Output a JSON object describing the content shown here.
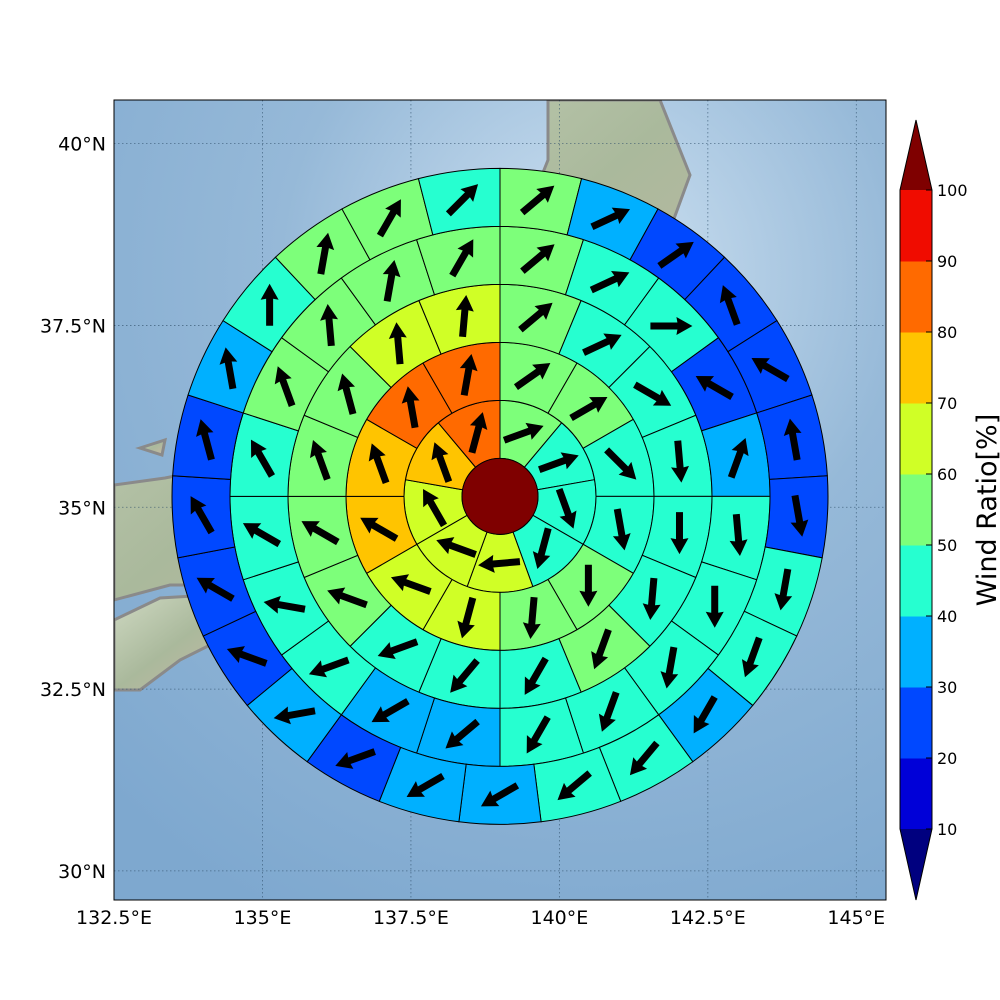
{
  "chart_data": {
    "type": "heatmap",
    "title": "",
    "x_axis": {
      "ticks": [
        132.5,
        135,
        137.5,
        140,
        142.5,
        145
      ],
      "tick_labels": [
        "132.5°E",
        "135°E",
        "137.5°E",
        "140°E",
        "142.5°E",
        "145°E"
      ],
      "range": [
        132.5,
        145.5
      ]
    },
    "y_axis": {
      "ticks": [
        30,
        32.5,
        35,
        37.5,
        40
      ],
      "tick_labels": [
        "30°N",
        "32.5°N",
        "35°N",
        "37.5°N",
        "40°N"
      ],
      "range": [
        29.6,
        40.6
      ]
    },
    "grid": true,
    "background": "shaded-relief map of central Japan with grey coastlines",
    "center": {
      "lon": 139.0,
      "lat": 35.15
    },
    "center_value": 100,
    "rings": [
      {
        "ring": 1,
        "values": [
          50,
          40,
          40,
          40,
          60,
          60,
          60,
          70,
          80
        ]
      },
      {
        "ring": 2,
        "values": [
          50,
          50,
          40,
          40,
          50,
          50,
          60,
          60,
          70,
          70,
          80,
          80
        ]
      },
      {
        "ring": 3,
        "values": [
          50,
          40,
          40,
          40,
          40,
          40,
          50,
          40,
          40,
          40,
          50,
          50,
          50,
          50,
          60,
          60
        ]
      },
      {
        "ring": 4,
        "values": [
          50,
          40,
          40,
          20,
          30,
          40,
          40,
          40,
          40,
          40,
          30,
          30,
          40,
          40,
          40,
          40,
          50,
          50,
          50,
          50
        ]
      },
      {
        "ring": 5,
        "values": [
          50,
          30,
          20,
          20,
          20,
          20,
          20,
          40,
          40,
          30,
          40,
          40,
          30,
          30,
          20,
          30,
          20,
          20,
          20,
          20,
          30,
          40,
          50,
          50,
          40
        ]
      }
    ],
    "arrows": [
      {
        "ring": 1,
        "dirs": [
          70,
          70,
          160,
          195,
          265,
          290,
          330,
          340,
          15
        ]
      },
      {
        "ring": 2,
        "dirs": [
          55,
          60,
          135,
          170,
          180,
          185,
          195,
          290,
          300,
          340,
          350,
          10
        ]
      },
      {
        "ring": 3,
        "dirs": [
          50,
          65,
          120,
          175,
          180,
          185,
          200,
          210,
          220,
          250,
          290,
          300,
          340,
          345,
          355,
          5
        ]
      },
      {
        "ring": 4,
        "dirs": [
          50,
          65,
          90,
          300,
          20,
          175,
          180,
          190,
          200,
          210,
          230,
          240,
          250,
          280,
          300,
          330,
          340,
          355,
          10,
          30
        ]
      },
      {
        "ring": 5,
        "dirs": [
          50,
          65,
          55,
          340,
          300,
          350,
          170,
          190,
          200,
          210,
          220,
          230,
          240,
          240,
          250,
          260,
          290,
          300,
          330,
          345,
          350,
          0,
          10,
          30,
          45
        ]
      }
    ],
    "colorbar": {
      "label": "Wind Ratio[%]",
      "ticks": [
        10,
        20,
        30,
        40,
        50,
        60,
        70,
        80,
        90,
        100
      ],
      "tick_labels": [
        "10",
        "20",
        "30",
        "40",
        "50",
        "60",
        "70",
        "80",
        "90",
        "100"
      ],
      "bins": [
        {
          "from": 10,
          "to": 20,
          "color": "#0000d8"
        },
        {
          "from": 20,
          "to": 30,
          "color": "#0048ff"
        },
        {
          "from": 30,
          "to": 40,
          "color": "#00b0ff"
        },
        {
          "from": 40,
          "to": 50,
          "color": "#26ffd0"
        },
        {
          "from": 50,
          "to": 60,
          "color": "#7dff7a"
        },
        {
          "from": 60,
          "to": 70,
          "color": "#d0ff26"
        },
        {
          "from": 70,
          "to": 80,
          "color": "#ffc400"
        },
        {
          "from": 80,
          "to": 90,
          "color": "#ff6a00"
        },
        {
          "from": 90,
          "to": 100,
          "color": "#f00c00"
        }
      ],
      "under_color": "#00007f",
      "over_color": "#7f0000"
    }
  }
}
